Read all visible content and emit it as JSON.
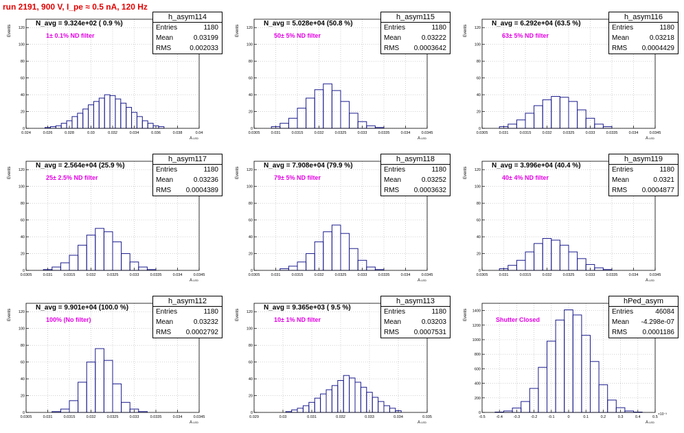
{
  "run_title": "run 2191,   900 V, I_pe ≈ 0.5 nA, 120 Hz",
  "y_axis_title": "Events",
  "x_axis_title": "A",
  "x_axis_subscript": "LED",
  "colors": {
    "hist": "#1a1a8c",
    "filter_label": "#e400e4",
    "run_title": "#e00000",
    "grid": "#b0b0b0"
  },
  "panels": [
    {
      "header": "N_avg = 9.324e+02 ( 0.9 %)",
      "filter": "1± 0.1% ND filter",
      "stats": {
        "name": "h_asym114",
        "entries": "1180",
        "mean": "0.03199",
        "rms": "0.002033"
      },
      "x_ticks": [
        "0.024",
        "0.026",
        "0.028",
        "0.03",
        "0.032",
        "0.034",
        "0.036",
        "0.038",
        "0.04"
      ],
      "y_ticks": [
        "0",
        "20",
        "40",
        "60",
        "80",
        "100",
        "120"
      ]
    },
    {
      "header": "N_avg = 5.028e+04 (50.8 %)",
      "filter": "50± 5% ND filter",
      "stats": {
        "name": "h_asym115",
        "entries": "1180",
        "mean": "0.03222",
        "rms": "0.0003642"
      },
      "x_ticks": [
        "0.0305",
        "0.031",
        "0.0315",
        "0.032",
        "0.0325",
        "0.033",
        "0.0335",
        "0.034",
        "0.0345"
      ],
      "y_ticks": [
        "0",
        "20",
        "40",
        "60",
        "80",
        "100",
        "120"
      ]
    },
    {
      "header": "N_avg = 6.292e+04 (63.5 %)",
      "filter": "63± 5% ND filter",
      "stats": {
        "name": "h_asym116",
        "entries": "1180",
        "mean": "0.03218",
        "rms": "0.0004429"
      },
      "x_ticks": [
        "0.0305",
        "0.031",
        "0.0315",
        "0.032",
        "0.0325",
        "0.033",
        "0.0335",
        "0.034",
        "0.0345"
      ],
      "y_ticks": [
        "0",
        "20",
        "40",
        "60",
        "80",
        "100",
        "120"
      ]
    },
    {
      "header": "N_avg = 2.564e+04 (25.9 %)",
      "filter": "25± 2.5% ND filter",
      "stats": {
        "name": "h_asym117",
        "entries": "1180",
        "mean": "0.03236",
        "rms": "0.0004389"
      },
      "x_ticks": [
        "0.0305",
        "0.031",
        "0.0315",
        "0.032",
        "0.0325",
        "0.033",
        "0.0335",
        "0.034",
        "0.0345"
      ],
      "y_ticks": [
        "0",
        "20",
        "40",
        "60",
        "80",
        "100",
        "120"
      ]
    },
    {
      "header": "N_avg = 7.908e+04 (79.9 %)",
      "filter": "79± 5% ND filter",
      "stats": {
        "name": "h_asym118",
        "entries": "1180",
        "mean": "0.03252",
        "rms": "0.0003632"
      },
      "x_ticks": [
        "0.0305",
        "0.031",
        "0.0315",
        "0.032",
        "0.0325",
        "0.033",
        "0.0335",
        "0.034",
        "0.0345"
      ],
      "y_ticks": [
        "0",
        "20",
        "40",
        "60",
        "80",
        "100",
        "120"
      ]
    },
    {
      "header": "N_avg = 3.996e+04 (40.4 %)",
      "filter": "40± 4% ND filter",
      "stats": {
        "name": "h_asym119",
        "entries": "1180",
        "mean": "0.0321",
        "rms": "0.0004877"
      },
      "x_ticks": [
        "0.0305",
        "0.031",
        "0.0315",
        "0.032",
        "0.0325",
        "0.033",
        "0.0335",
        "0.034",
        "0.0345"
      ],
      "y_ticks": [
        "0",
        "20",
        "40",
        "60",
        "80",
        "100",
        "120"
      ]
    },
    {
      "header": "N_avg = 9.901e+04 (100.0 %)",
      "filter": "100% (No filter)",
      "stats": {
        "name": "h_asym112",
        "entries": "1180",
        "mean": "0.03232",
        "rms": "0.0002792"
      },
      "x_ticks": [
        "0.0305",
        "0.031",
        "0.0315",
        "0.032",
        "0.0325",
        "0.033",
        "0.0335",
        "0.034",
        "0.0345"
      ],
      "y_ticks": [
        "0",
        "20",
        "40",
        "60",
        "80",
        "100",
        "120"
      ]
    },
    {
      "header": "N_avg = 9.365e+03 ( 9.5 %)",
      "filter": "10± 1% ND filter",
      "stats": {
        "name": "h_asym113",
        "entries": "1180",
        "mean": "0.03203",
        "rms": "0.0007531"
      },
      "x_ticks": [
        "0.029",
        "0.03",
        "0.031",
        "0.032",
        "0.033",
        "0.034",
        "0.035"
      ],
      "y_ticks": [
        "0",
        "20",
        "40",
        "60",
        "80",
        "100",
        "120"
      ]
    },
    {
      "header": "",
      "filter": "Shutter Closed",
      "stats": {
        "name": "hPed_asym",
        "entries": "46084",
        "mean": "-4.298e-07",
        "rms": "0.0001186"
      },
      "x_ticks": [
        "-0.5",
        "-0.4",
        "-0.3",
        "-0.2",
        "-0.1",
        "0",
        "0.1",
        "0.2",
        "0.3",
        "0.4",
        "0.5"
      ],
      "x_exponent": "×10⁻³",
      "y_ticks": [
        "0",
        "200",
        "400",
        "600",
        "800",
        "1000",
        "1200",
        "1400"
      ]
    }
  ],
  "chart_data": [
    {
      "type": "bar",
      "title": "h_asym114",
      "xlabel": "A LED",
      "ylabel": "Events",
      "xlim": [
        0.024,
        0.04
      ],
      "ylim": [
        0,
        130
      ],
      "categories": [
        "0.0260",
        "0.0265",
        "0.0270",
        "0.0275",
        "0.0280",
        "0.0285",
        "0.0290",
        "0.0295",
        "0.0300",
        "0.0305",
        "0.0310",
        "0.0315",
        "0.0320",
        "0.0325",
        "0.0330",
        "0.0335",
        "0.0340",
        "0.0345",
        "0.0350",
        "0.0355",
        "0.0360",
        "0.0365"
      ],
      "values": [
        1,
        2,
        3,
        6,
        9,
        14,
        18,
        23,
        28,
        32,
        36,
        40,
        39,
        35,
        30,
        25,
        19,
        14,
        9,
        6,
        3,
        2
      ]
    },
    {
      "type": "bar",
      "title": "h_asym115",
      "xlabel": "A LED",
      "ylabel": "Events",
      "xlim": [
        0.0305,
        0.0345
      ],
      "ylim": [
        0,
        130
      ],
      "categories": [
        "0.0310",
        "0.0312",
        "0.0314",
        "0.0316",
        "0.0318",
        "0.0320",
        "0.0322",
        "0.0324",
        "0.0326",
        "0.0328",
        "0.0330",
        "0.0332",
        "0.0334"
      ],
      "values": [
        2,
        6,
        12,
        24,
        36,
        46,
        53,
        45,
        32,
        18,
        8,
        3,
        1
      ]
    },
    {
      "type": "bar",
      "title": "h_asym116",
      "xlabel": "A LED",
      "ylabel": "Events",
      "xlim": [
        0.0305,
        0.0345
      ],
      "ylim": [
        0,
        130
      ],
      "categories": [
        "0.0310",
        "0.0312",
        "0.0314",
        "0.0316",
        "0.0318",
        "0.0320",
        "0.0322",
        "0.0324",
        "0.0326",
        "0.0328",
        "0.0330",
        "0.0332",
        "0.0334"
      ],
      "values": [
        2,
        5,
        10,
        18,
        27,
        34,
        38,
        37,
        32,
        22,
        12,
        5,
        2
      ]
    },
    {
      "type": "bar",
      "title": "h_asym117",
      "xlabel": "A LED",
      "ylabel": "Events",
      "xlim": [
        0.0305,
        0.0345
      ],
      "ylim": [
        0,
        130
      ],
      "categories": [
        "0.0310",
        "0.0312",
        "0.0314",
        "0.0316",
        "0.0318",
        "0.0320",
        "0.0322",
        "0.0324",
        "0.0326",
        "0.0328",
        "0.0330",
        "0.0332",
        "0.0334"
      ],
      "values": [
        1,
        4,
        9,
        18,
        30,
        42,
        50,
        46,
        34,
        20,
        10,
        4,
        1
      ]
    },
    {
      "type": "bar",
      "title": "h_asym118",
      "xlabel": "A LED",
      "ylabel": "Events",
      "xlim": [
        0.0305,
        0.0345
      ],
      "ylim": [
        0,
        130
      ],
      "categories": [
        "0.0310",
        "0.0312",
        "0.0314",
        "0.0316",
        "0.0318",
        "0.0320",
        "0.0322",
        "0.0324",
        "0.0326",
        "0.0328",
        "0.0330",
        "0.0332",
        "0.0334"
      ],
      "values": [
        0,
        2,
        5,
        10,
        20,
        34,
        46,
        54,
        44,
        26,
        12,
        4,
        1
      ]
    },
    {
      "type": "bar",
      "title": "h_asym119",
      "xlabel": "A LED",
      "ylabel": "Events",
      "xlim": [
        0.0305,
        0.0345
      ],
      "ylim": [
        0,
        130
      ],
      "categories": [
        "0.0310",
        "0.0312",
        "0.0314",
        "0.0316",
        "0.0318",
        "0.0320",
        "0.0322",
        "0.0324",
        "0.0326",
        "0.0328",
        "0.0330",
        "0.0332",
        "0.0334"
      ],
      "values": [
        2,
        6,
        12,
        22,
        32,
        38,
        36,
        30,
        22,
        14,
        7,
        3,
        1
      ]
    },
    {
      "type": "bar",
      "title": "h_asym112",
      "xlabel": "A LED",
      "ylabel": "Events",
      "xlim": [
        0.0305,
        0.0345
      ],
      "ylim": [
        0,
        130
      ],
      "categories": [
        "0.0312",
        "0.0314",
        "0.0316",
        "0.0318",
        "0.0320",
        "0.0322",
        "0.0324",
        "0.0326",
        "0.0328",
        "0.0330",
        "0.0332"
      ],
      "values": [
        1,
        4,
        14,
        36,
        60,
        76,
        62,
        34,
        12,
        4,
        1
      ]
    },
    {
      "type": "bar",
      "title": "h_asym113",
      "xlabel": "A LED",
      "ylabel": "Events",
      "xlim": [
        0.029,
        0.035
      ],
      "ylim": [
        0,
        130
      ],
      "categories": [
        "0.0302",
        "0.0304",
        "0.0306",
        "0.0308",
        "0.0310",
        "0.0312",
        "0.0314",
        "0.0316",
        "0.0318",
        "0.0320",
        "0.0322",
        "0.0324",
        "0.0326",
        "0.0328",
        "0.0330",
        "0.0332",
        "0.0334",
        "0.0336",
        "0.0338",
        "0.0340"
      ],
      "values": [
        1,
        3,
        5,
        8,
        12,
        17,
        22,
        27,
        32,
        38,
        44,
        41,
        36,
        30,
        24,
        18,
        13,
        8,
        5,
        2
      ]
    },
    {
      "type": "bar",
      "title": "hPed_asym",
      "xlabel": "A LED (×10⁻³)",
      "ylabel": "Events",
      "xlim": [
        -0.5,
        0.5
      ],
      "ylim": [
        0,
        1500
      ],
      "categories": [
        "-0.40",
        "-0.35",
        "-0.30",
        "-0.25",
        "-0.20",
        "-0.15",
        "-0.10",
        "-0.05",
        "0.00",
        "0.05",
        "0.10",
        "0.15",
        "0.20",
        "0.25",
        "0.30",
        "0.35",
        "0.40"
      ],
      "values": [
        5,
        20,
        60,
        150,
        330,
        620,
        980,
        1270,
        1410,
        1340,
        1060,
        700,
        380,
        170,
        65,
        20,
        5
      ]
    }
  ]
}
